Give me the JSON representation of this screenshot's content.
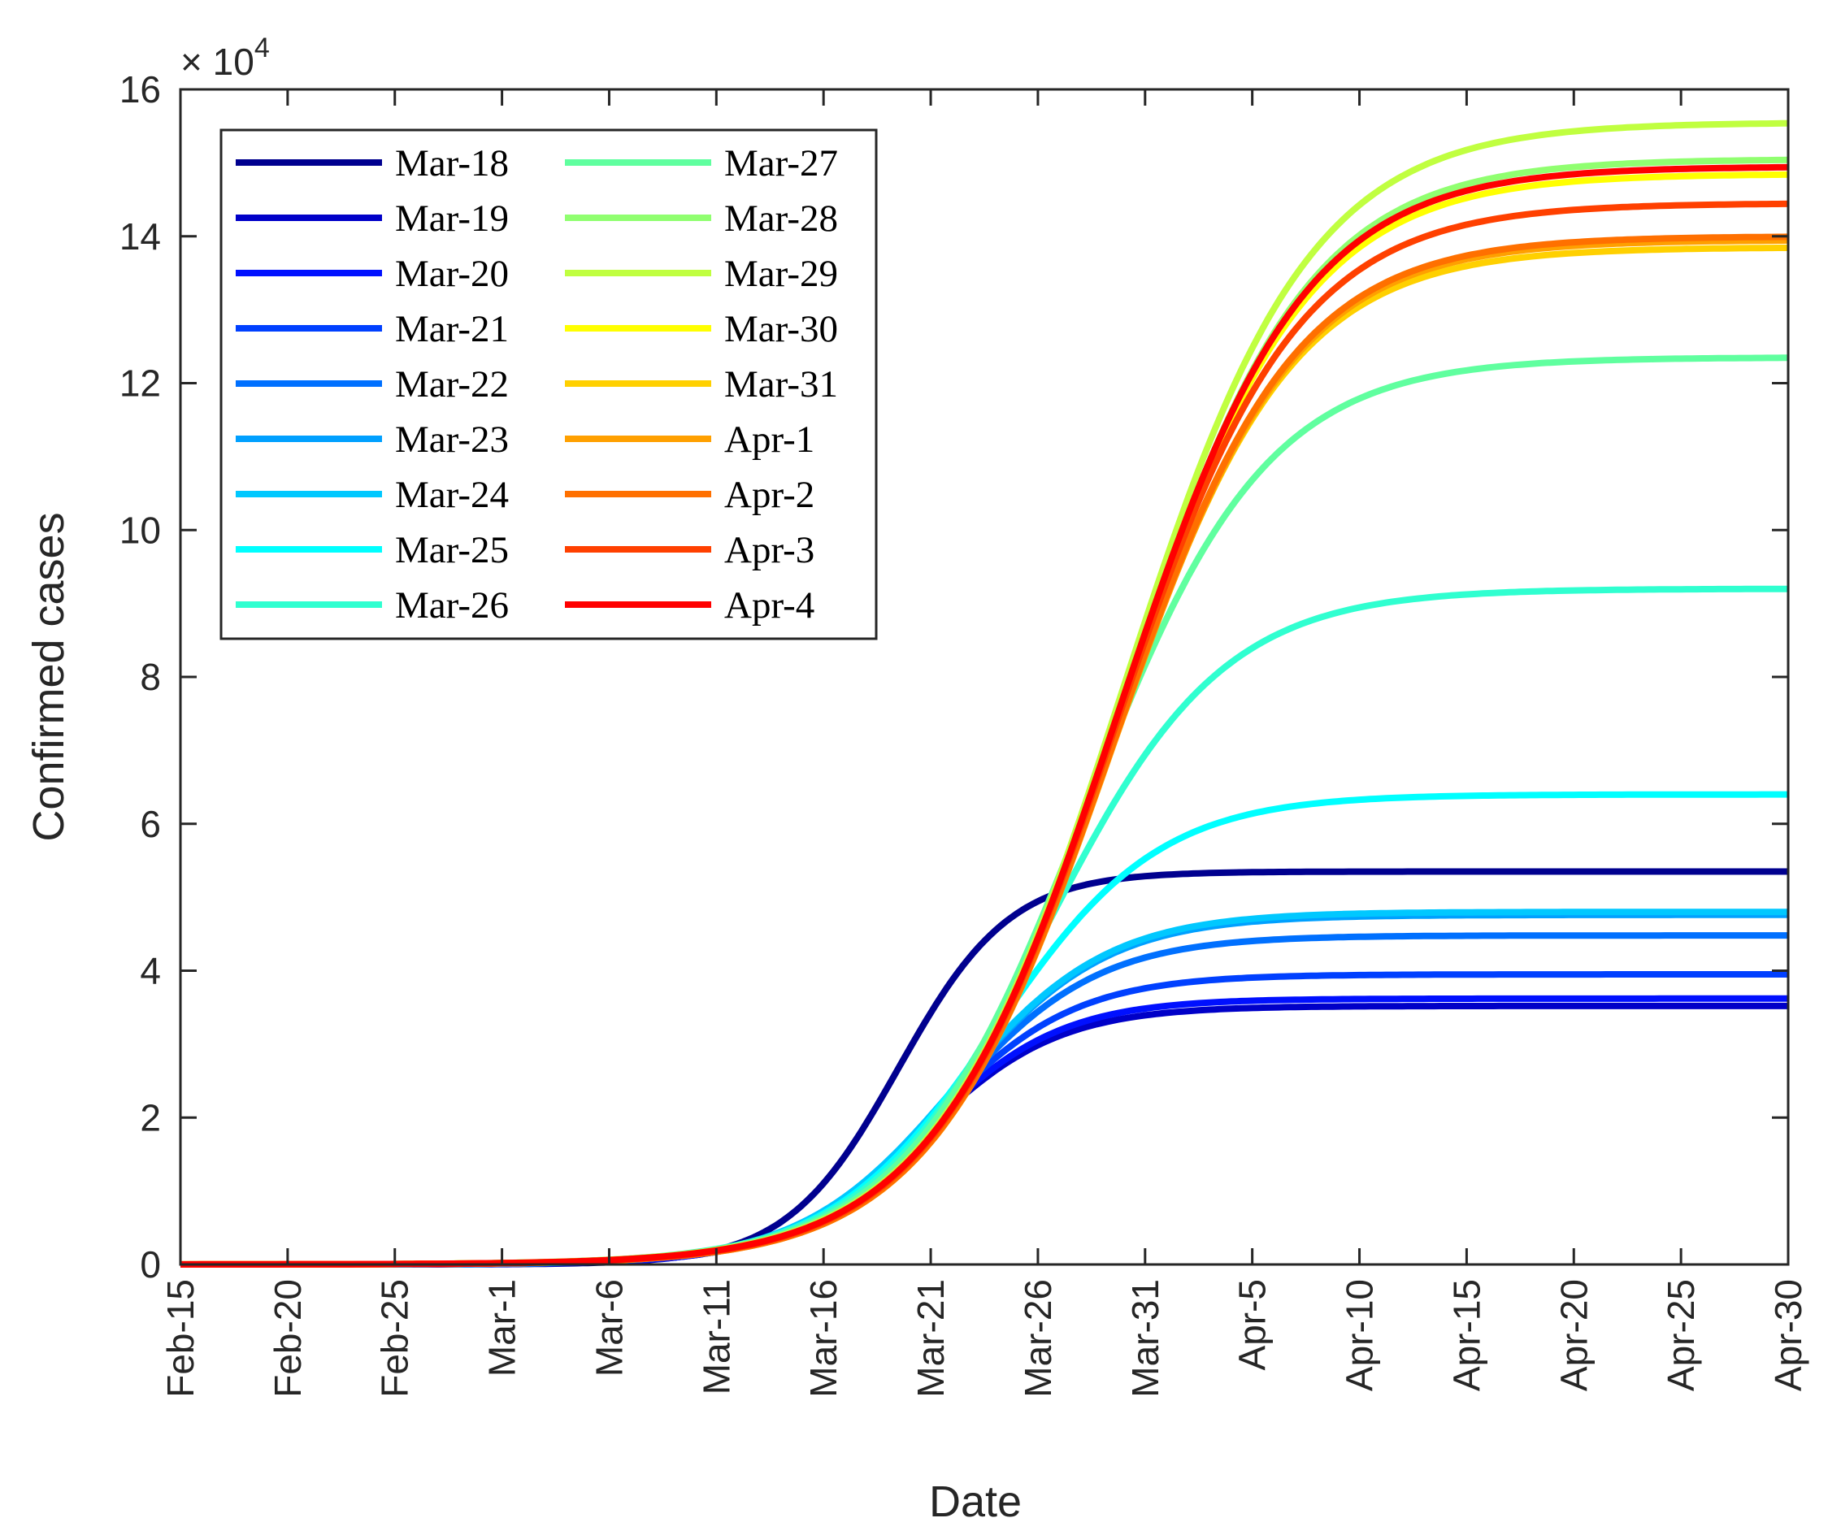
{
  "chart_data": {
    "type": "line",
    "xlabel": "Date",
    "ylabel": "Confirmed cases",
    "y_multiplier_base": "× 10",
    "y_multiplier_exp": "4",
    "xlim": [
      0,
      75
    ],
    "ylim": [
      0,
      16
    ],
    "x_ticks": [
      {
        "x": 0,
        "label": "Feb-15"
      },
      {
        "x": 5,
        "label": "Feb-20"
      },
      {
        "x": 10,
        "label": "Feb-25"
      },
      {
        "x": 15,
        "label": "Mar-1"
      },
      {
        "x": 20,
        "label": "Mar-6"
      },
      {
        "x": 25,
        "label": "Mar-11"
      },
      {
        "x": 30,
        "label": "Mar-16"
      },
      {
        "x": 35,
        "label": "Mar-21"
      },
      {
        "x": 40,
        "label": "Mar-26"
      },
      {
        "x": 45,
        "label": "Mar-31"
      },
      {
        "x": 50,
        "label": "Apr-5"
      },
      {
        "x": 55,
        "label": "Apr-10"
      },
      {
        "x": 60,
        "label": "Apr-15"
      },
      {
        "x": 65,
        "label": "Apr-20"
      },
      {
        "x": 70,
        "label": "Apr-25"
      },
      {
        "x": 75,
        "label": "Apr-30"
      }
    ],
    "y_ticks": [
      {
        "y": 0,
        "label": "0"
      },
      {
        "y": 2,
        "label": "2"
      },
      {
        "y": 4,
        "label": "4"
      },
      {
        "y": 6,
        "label": "6"
      },
      {
        "y": 8,
        "label": "8"
      },
      {
        "y": 10,
        "label": "10"
      },
      {
        "y": 12,
        "label": "12"
      },
      {
        "y": 14,
        "label": "14"
      },
      {
        "y": 16,
        "label": "16"
      }
    ],
    "legend_position": "top-left",
    "series": [
      {
        "name": "Mar-18",
        "color": "#00008f",
        "K": 5.35,
        "t0": 33.5,
        "w": 2.6
      },
      {
        "name": "Mar-19",
        "color": "#0000c8",
        "K": 3.52,
        "t0": 34.5,
        "w": 3.2
      },
      {
        "name": "Mar-20",
        "color": "#0010ff",
        "K": 3.62,
        "t0": 34.6,
        "w": 3.2
      },
      {
        "name": "Mar-21",
        "color": "#0040ff",
        "K": 3.95,
        "t0": 35.0,
        "w": 3.35
      },
      {
        "name": "Mar-22",
        "color": "#0070ff",
        "K": 4.48,
        "t0": 35.8,
        "w": 3.5
      },
      {
        "name": "Mar-23",
        "color": "#00a0ff",
        "K": 4.76,
        "t0": 36.1,
        "w": 3.55
      },
      {
        "name": "Mar-24",
        "color": "#00c8ff",
        "K": 4.8,
        "t0": 36.1,
        "w": 3.55
      },
      {
        "name": "Mar-25",
        "color": "#00ffff",
        "K": 6.4,
        "t0": 38.0,
        "w": 3.8
      },
      {
        "name": "Mar-26",
        "color": "#30ffd0",
        "K": 9.2,
        "t0": 40.4,
        "w": 4.1
      },
      {
        "name": "Mar-27",
        "color": "#60ff9f",
        "K": 12.35,
        "t0": 42.2,
        "w": 4.2
      },
      {
        "name": "Mar-28",
        "color": "#90ff70",
        "K": 15.05,
        "t0": 43.8,
        "w": 4.3
      },
      {
        "name": "Mar-29",
        "color": "#c0ff40",
        "K": 15.55,
        "t0": 43.9,
        "w": 4.35
      },
      {
        "name": "Mar-30",
        "color": "#ffff00",
        "K": 14.85,
        "t0": 43.7,
        "w": 4.3
      },
      {
        "name": "Mar-31",
        "color": "#ffd000",
        "K": 13.85,
        "t0": 43.3,
        "w": 4.2
      },
      {
        "name": "Apr-1",
        "color": "#ffa000",
        "K": 13.95,
        "t0": 43.4,
        "w": 4.2
      },
      {
        "name": "Apr-2",
        "color": "#ff7000",
        "K": 14.0,
        "t0": 43.4,
        "w": 4.2
      },
      {
        "name": "Apr-3",
        "color": "#ff4000",
        "K": 14.45,
        "t0": 43.5,
        "w": 4.25
      },
      {
        "name": "Apr-4",
        "color": "#ff0000",
        "K": 14.95,
        "t0": 43.7,
        "w": 4.3
      }
    ]
  }
}
